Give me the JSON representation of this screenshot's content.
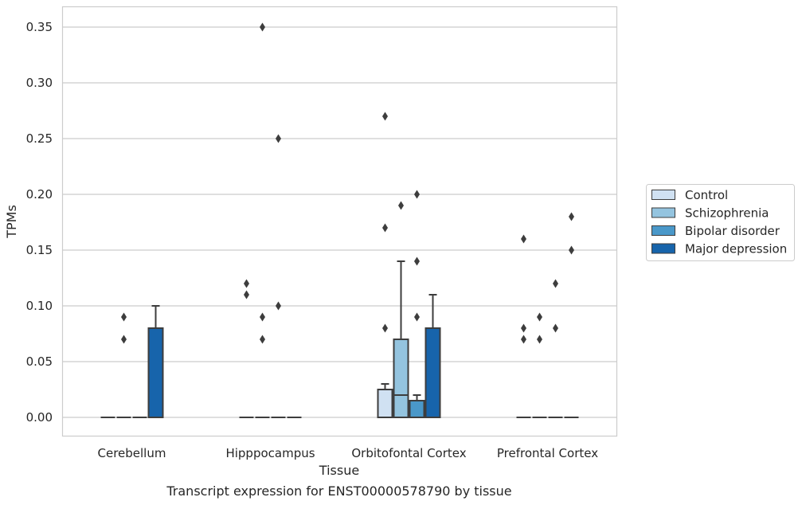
{
  "chart_data": {
    "type": "box",
    "title": "Transcript expression for ENST00000578790 by tissue",
    "xlabel": "Tissue",
    "ylabel": "TPMs",
    "ylim": [
      -0.018,
      0.367
    ],
    "yticks": [
      "0.00",
      "0.05",
      "0.10",
      "0.15",
      "0.20",
      "0.25",
      "0.30",
      "0.35"
    ],
    "ytick_values": [
      0,
      0.05,
      0.1,
      0.15,
      0.2,
      0.25,
      0.3,
      0.35
    ],
    "grid": true,
    "legend_position": "right",
    "categories": [
      "Cerebellum",
      "Hipppocampus",
      "Orbitofontal Cortex",
      "Prefrontal Cortex"
    ],
    "series": [
      {
        "name": "Control",
        "color": "#d0e1f2",
        "boxes": [
          {
            "q1": 0,
            "median": 0,
            "q3": 0,
            "whislo": 0,
            "whishi": 0,
            "fliers": []
          },
          {
            "q1": 0,
            "median": 0,
            "q3": 0,
            "whislo": 0,
            "whishi": 0,
            "fliers": [
              0.11,
              0.12
            ]
          },
          {
            "q1": 0,
            "median": 0,
            "q3": 0.025,
            "whislo": 0,
            "whishi": 0.03,
            "fliers": [
              0.08,
              0.17,
              0.27
            ]
          },
          {
            "q1": 0,
            "median": 0,
            "q3": 0,
            "whislo": 0,
            "whishi": 0,
            "fliers": [
              0.07,
              0.08,
              0.16
            ]
          }
        ]
      },
      {
        "name": "Schizophrenia",
        "color": "#94c4df",
        "boxes": [
          {
            "q1": 0,
            "median": 0,
            "q3": 0,
            "whislo": 0,
            "whishi": 0,
            "fliers": [
              0.07,
              0.09
            ]
          },
          {
            "q1": 0,
            "median": 0,
            "q3": 0,
            "whislo": 0,
            "whishi": 0,
            "fliers": [
              0.07,
              0.09,
              0.35
            ]
          },
          {
            "q1": 0,
            "median": 0.02,
            "q3": 0.07,
            "whislo": 0,
            "whishi": 0.14,
            "fliers": [
              0.19
            ]
          },
          {
            "q1": 0,
            "median": 0,
            "q3": 0,
            "whislo": 0,
            "whishi": 0,
            "fliers": [
              0.07,
              0.09
            ]
          }
        ]
      },
      {
        "name": "Bipolar disorder",
        "color": "#4a98c9",
        "boxes": [
          {
            "q1": 0,
            "median": 0,
            "q3": 0,
            "whislo": 0,
            "whishi": 0,
            "fliers": []
          },
          {
            "q1": 0,
            "median": 0,
            "q3": 0,
            "whislo": 0,
            "whishi": 0,
            "fliers": [
              0.1,
              0.25
            ]
          },
          {
            "q1": 0,
            "median": 0,
            "q3": 0.015,
            "whislo": 0,
            "whishi": 0.02,
            "fliers": [
              0.09,
              0.14,
              0.2
            ]
          },
          {
            "q1": 0,
            "median": 0,
            "q3": 0,
            "whislo": 0,
            "whishi": 0,
            "fliers": [
              0.08,
              0.12
            ]
          }
        ]
      },
      {
        "name": "Major depression",
        "color": "#1764ab",
        "boxes": [
          {
            "q1": 0,
            "median": 0,
            "q3": 0.08,
            "whislo": 0,
            "whishi": 0.1,
            "fliers": []
          },
          {
            "q1": 0,
            "median": 0,
            "q3": 0,
            "whislo": 0,
            "whishi": 0,
            "fliers": []
          },
          {
            "q1": 0,
            "median": 0,
            "q3": 0.08,
            "whislo": 0,
            "whishi": 0.11,
            "fliers": []
          },
          {
            "q1": 0,
            "median": 0,
            "q3": 0,
            "whislo": 0,
            "whishi": 0,
            "fliers": [
              0.15,
              0.18
            ]
          }
        ]
      }
    ],
    "colors": {
      "grid": "#cccccc",
      "frame": "#cccccc",
      "box_edge": "#3d3d3d",
      "flier": "#3d3d3d"
    }
  }
}
